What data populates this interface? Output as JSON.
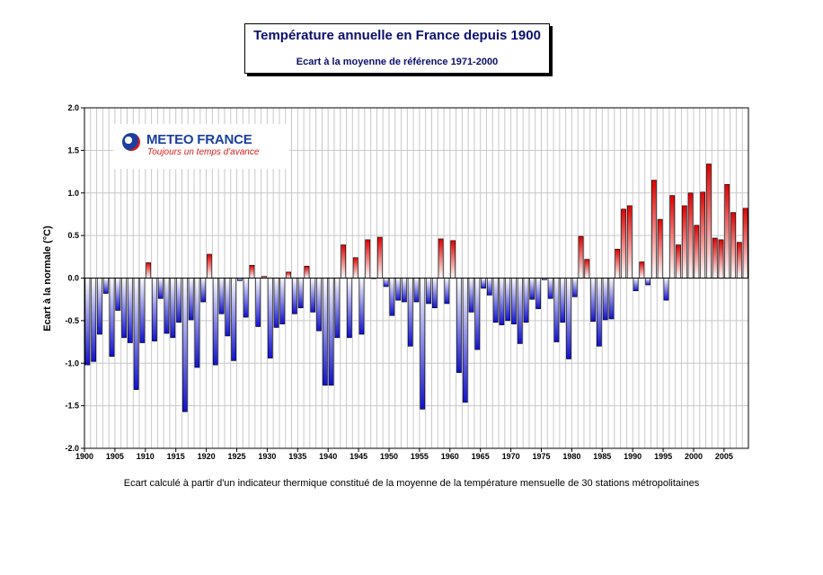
{
  "title": {
    "main": "Température annuelle en France depuis 1900",
    "sub": "Ecart à la moyenne de référence 1971-2000"
  },
  "logo": {
    "name": "METEO FRANCE",
    "tagline": "Toujours un temps d'avance"
  },
  "footnote": "Ecart calculé à partir d'un indicateur thermique constitué de la moyenne de la température mensuelle de 30 stations métropolitaines",
  "colors": {
    "positive": "#e00000",
    "negative": "#1010d0",
    "grid": "#c8c8c8"
  },
  "chart_data": {
    "type": "bar",
    "ylabel": "Ecart à la normale (°C)",
    "xlabel": "",
    "ylim": [
      -2.0,
      2.0
    ],
    "yticks": [
      "2.0",
      "1.5",
      "1.0",
      "0.5",
      "0.0",
      "-0.5",
      "-1.0",
      "-1.5",
      "-2.0"
    ],
    "xticks": [
      "1900",
      "1905",
      "1910",
      "1915",
      "1920",
      "1925",
      "1930",
      "1935",
      "1940",
      "1945",
      "1950",
      "1955",
      "1960",
      "1965",
      "1970",
      "1975",
      "1980",
      "1985",
      "1990",
      "1995",
      "2000",
      "2005"
    ],
    "grid": true,
    "x_start": 1900,
    "values": [
      -1.02,
      -0.98,
      -0.66,
      -0.18,
      -0.92,
      -0.38,
      -0.7,
      -0.76,
      -1.31,
      -0.76,
      0.18,
      -0.74,
      -0.24,
      -0.65,
      -0.7,
      -0.52,
      -1.57,
      -0.49,
      -1.05,
      -0.28,
      0.28,
      -1.02,
      -0.42,
      -0.68,
      -0.97,
      -0.03,
      -0.46,
      0.15,
      -0.57,
      0.02,
      -0.94,
      -0.58,
      -0.54,
      0.07,
      -0.42,
      -0.35,
      0.14,
      -0.4,
      -0.62,
      -1.26,
      -1.26,
      -0.7,
      0.39,
      -0.7,
      0.24,
      -0.66,
      0.45,
      0.0,
      0.48,
      -0.1,
      -0.44,
      -0.26,
      -0.28,
      -0.8,
      -0.28,
      -1.54,
      -0.3,
      -0.35,
      0.46,
      -0.3,
      0.44,
      -1.11,
      -1.46,
      -0.4,
      -0.84,
      -0.12,
      -0.2,
      -0.52,
      -0.55,
      -0.5,
      -0.54,
      -0.77,
      -0.52,
      -0.25,
      -0.36,
      -0.02,
      -0.24,
      -0.75,
      -0.52,
      -0.95,
      -0.22,
      0.49,
      0.22,
      -0.51,
      -0.8,
      -0.49,
      -0.48,
      0.34,
      0.81,
      0.85,
      -0.15,
      0.19,
      -0.08,
      1.15,
      0.69,
      -0.26,
      0.97,
      0.39,
      0.85,
      1.0,
      0.62,
      1.01,
      1.34,
      0.47,
      0.45,
      1.1,
      0.77,
      0.42,
      0.82
    ]
  }
}
